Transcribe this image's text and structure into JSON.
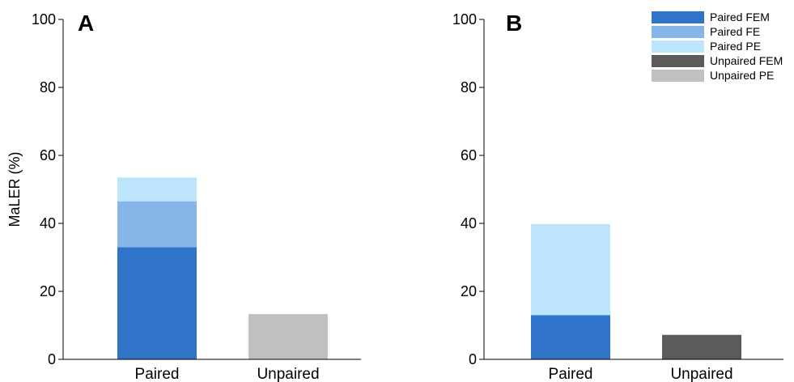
{
  "chart_data": [
    {
      "panel_label": "A",
      "type": "bar",
      "stacked": true,
      "categories": [
        "Paired",
        "Unpaired"
      ],
      "ylabel": "MaLER (%)",
      "xlabel": "",
      "ylim": [
        0,
        100
      ],
      "yticks": [
        0,
        20,
        40,
        60,
        80,
        100
      ],
      "series": [
        {
          "name": "Paired FEM",
          "color": "#2f74c8",
          "values": [
            33,
            0
          ]
        },
        {
          "name": "Paired FE",
          "color": "#86b6e9",
          "values": [
            13.5,
            0
          ]
        },
        {
          "name": "Paired PE",
          "color": "#bce4fa",
          "values": [
            7,
            0
          ]
        },
        {
          "name": "Unpaired FEM",
          "color": "#5b5b5b",
          "values": [
            0,
            0
          ]
        },
        {
          "name": "Unpaired PE",
          "color": "#c0c0c0",
          "values": [
            0,
            13.3
          ]
        }
      ]
    },
    {
      "panel_label": "B",
      "type": "bar",
      "stacked": true,
      "categories": [
        "Paired",
        "Unpaired"
      ],
      "ylabel": "",
      "xlabel": "",
      "ylim": [
        0,
        100
      ],
      "yticks": [
        0,
        20,
        40,
        60,
        80,
        100
      ],
      "legend_position": "top-right",
      "series": [
        {
          "name": "Paired FEM",
          "color": "#2f74c8",
          "values": [
            13,
            0
          ]
        },
        {
          "name": "Paired FE",
          "color": "#86b6e9",
          "values": [
            0,
            0
          ]
        },
        {
          "name": "Paired PE",
          "color": "#bce4fa",
          "values": [
            26.8,
            0
          ]
        },
        {
          "name": "Unpaired FEM",
          "color": "#5b5b5b",
          "values": [
            0,
            7.2
          ]
        },
        {
          "name": "Unpaired PE",
          "color": "#c0c0c0",
          "values": [
            0,
            0
          ]
        }
      ]
    }
  ]
}
